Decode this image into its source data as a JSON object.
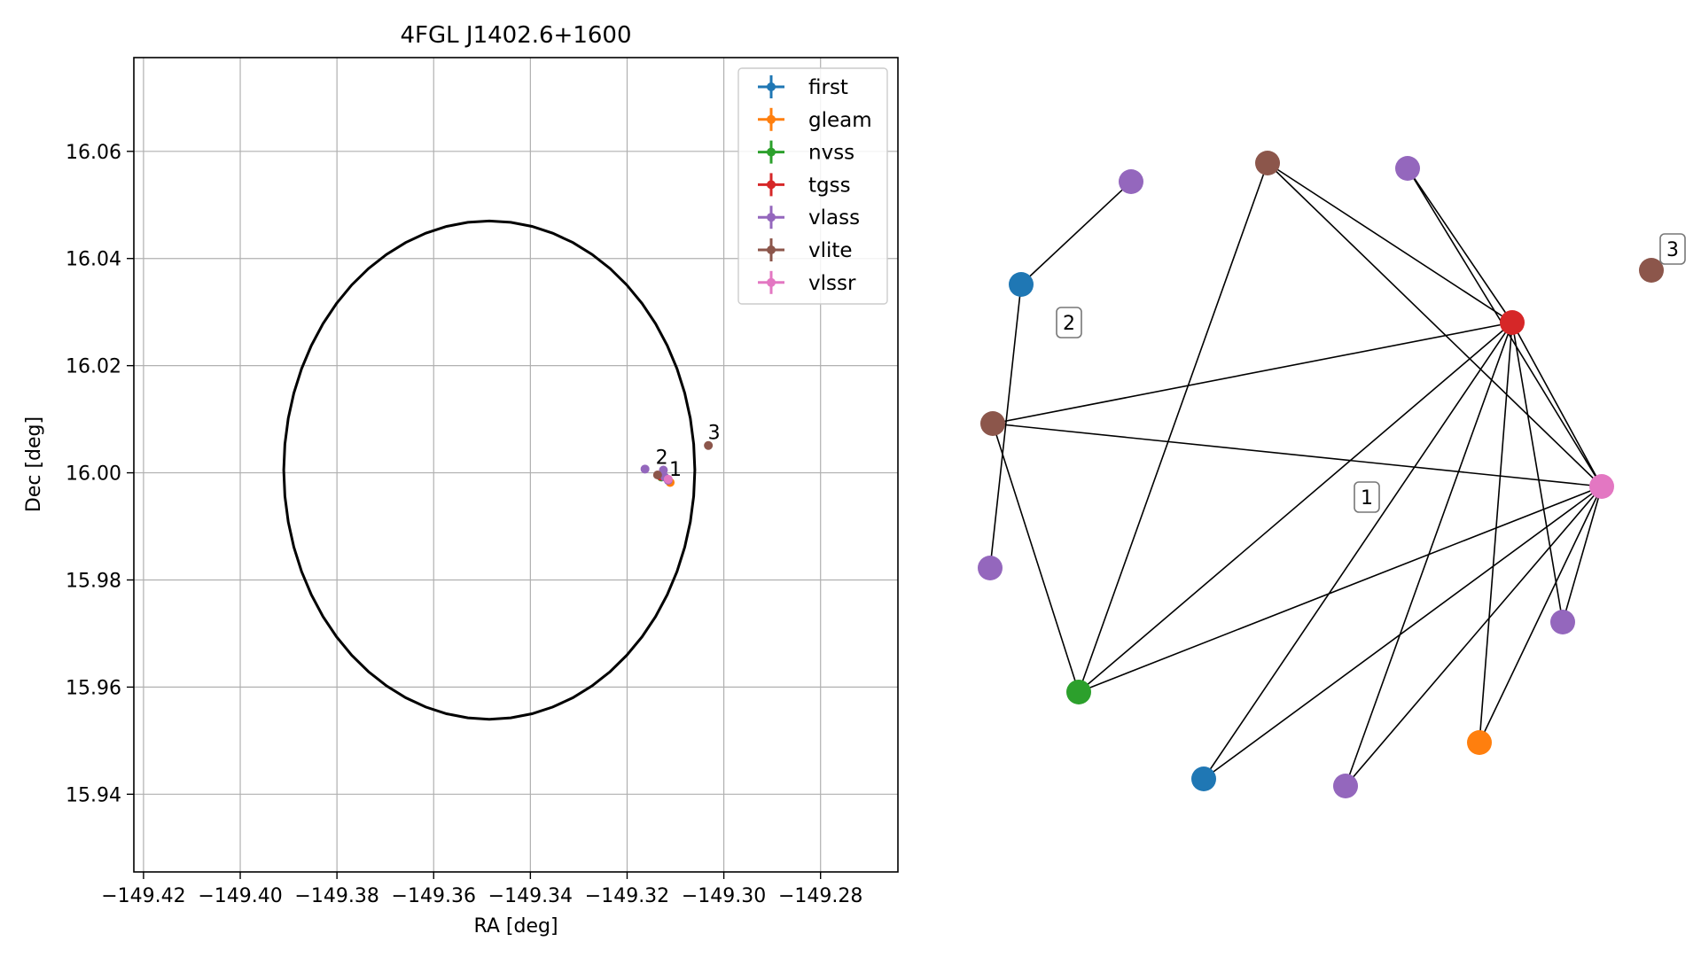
{
  "chart_data": [
    {
      "type": "scatter",
      "title": "4FGL J1402.6+1600",
      "xlabel": "RA [deg]",
      "ylabel": "Dec [deg]",
      "xlim": [
        -149.422,
        -149.264
      ],
      "ylim": [
        15.9255,
        16.0775
      ],
      "xticks": [
        -149.42,
        -149.4,
        -149.38,
        -149.36,
        -149.34,
        -149.32,
        -149.3,
        -149.28
      ],
      "xtick_labels": [
        "−149.42",
        "−149.40",
        "−149.38",
        "−149.36",
        "−149.34",
        "−149.32",
        "−149.30",
        "−149.28"
      ],
      "yticks": [
        15.94,
        15.96,
        15.98,
        16.0,
        16.02,
        16.04,
        16.06
      ],
      "ytick_labels": [
        "15.94",
        "15.96",
        "15.98",
        "16.00",
        "16.02",
        "16.04",
        "16.06"
      ],
      "grid": true,
      "legend_position": "top-right",
      "ellipse": {
        "center": [
          -149.3485,
          16.0005
        ],
        "semi_axis_ra": 0.0425,
        "semi_axis_dec": 0.0465,
        "color": "#000000"
      },
      "series": [
        {
          "name": "first",
          "color": "#1f77b4",
          "points": [
            [
              -149.3128,
              15.9996
            ]
          ]
        },
        {
          "name": "gleam",
          "color": "#ff7f0e",
          "points": [
            [
              -149.3111,
              15.9982
            ]
          ]
        },
        {
          "name": "nvss",
          "color": "#2ca02c",
          "points": [
            [
              -149.3129,
              15.9992
            ]
          ]
        },
        {
          "name": "tgss",
          "color": "#d62728",
          "points": [
            [
              -149.3131,
              15.9994
            ]
          ]
        },
        {
          "name": "vlass",
          "color": "#9467bd",
          "points": [
            [
              -149.3163,
              16.0007
            ],
            [
              -149.3125,
              16.0005
            ],
            [
              -149.3122,
              15.9992
            ],
            [
              -149.3115,
              15.9986
            ]
          ]
        },
        {
          "name": "vlite",
          "color": "#8c564b",
          "points": [
            [
              -149.3137,
              15.9996
            ],
            [
              -149.3032,
              16.0051
            ]
          ]
        },
        {
          "name": "vlssr",
          "color": "#e377c2",
          "points": [
            [
              -149.3115,
              15.9988
            ]
          ]
        }
      ],
      "annotations": [
        {
          "text": "1",
          "at": [
            -149.3113,
            15.9994
          ]
        },
        {
          "text": "2",
          "at": [
            -149.3141,
            16.0017
          ]
        },
        {
          "text": "3",
          "at": [
            -149.3033,
            16.0063
          ]
        }
      ]
    },
    {
      "type": "network",
      "nodes": [
        {
          "id": "vlass-a",
          "color": "#9467bd"
        },
        {
          "id": "vlite-a",
          "color": "#8c564b"
        },
        {
          "id": "vlass-b",
          "color": "#9467bd"
        },
        {
          "id": "first-a",
          "color": "#1f77b4"
        },
        {
          "id": "tgss",
          "color": "#d62728"
        },
        {
          "id": "vlite-b",
          "color": "#8c564b"
        },
        {
          "id": "vlite-c",
          "color": "#8c564b"
        },
        {
          "id": "vlssr",
          "color": "#e377c2"
        },
        {
          "id": "vlass-c",
          "color": "#9467bd"
        },
        {
          "id": "vlass-d",
          "color": "#9467bd"
        },
        {
          "id": "nvss",
          "color": "#2ca02c"
        },
        {
          "id": "gleam",
          "color": "#ff7f0e"
        },
        {
          "id": "first-b",
          "color": "#1f77b4"
        },
        {
          "id": "vlass-e",
          "color": "#9467bd"
        }
      ],
      "edges": [
        [
          "first-a",
          "vlass-a"
        ],
        [
          "first-a",
          "vlass-c"
        ],
        [
          "vlite-a",
          "nvss"
        ],
        [
          "vlite-a",
          "tgss"
        ],
        [
          "vlite-a",
          "vlssr"
        ],
        [
          "vlass-b",
          "tgss"
        ],
        [
          "vlass-b",
          "vlssr"
        ],
        [
          "vlite-c",
          "tgss"
        ],
        [
          "vlite-c",
          "vlssr"
        ],
        [
          "vlite-c",
          "nvss"
        ],
        [
          "tgss",
          "vlssr"
        ],
        [
          "tgss",
          "vlass-d"
        ],
        [
          "tgss",
          "gleam"
        ],
        [
          "tgss",
          "vlass-e"
        ],
        [
          "tgss",
          "first-b"
        ],
        [
          "tgss",
          "nvss"
        ],
        [
          "vlssr",
          "nvss"
        ],
        [
          "vlssr",
          "vlass-d"
        ],
        [
          "vlssr",
          "gleam"
        ],
        [
          "vlssr",
          "vlass-e"
        ],
        [
          "vlssr",
          "first-b"
        ]
      ],
      "group_labels": [
        "1",
        "2",
        "3"
      ]
    }
  ]
}
